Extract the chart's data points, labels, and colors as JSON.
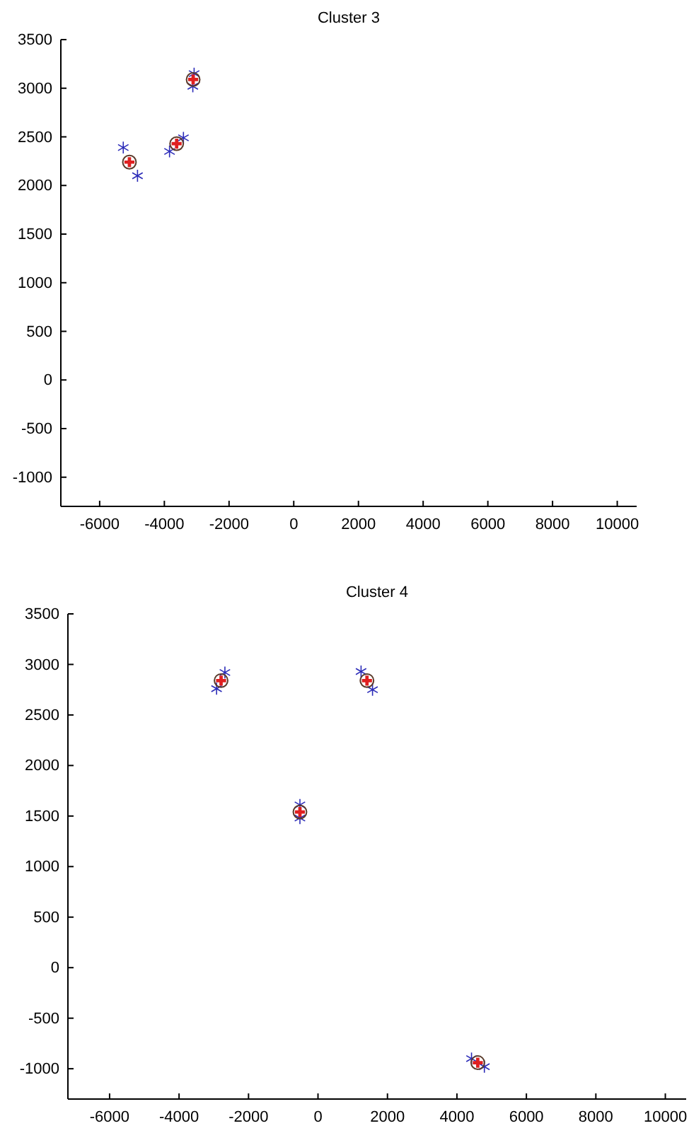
{
  "chart_data": [
    {
      "type": "scatter",
      "title": "Cluster 3",
      "xlim": [
        -7200,
        10600
      ],
      "ylim": [
        -1300,
        3500
      ],
      "xticks": [
        -6000,
        -4000,
        -2000,
        0,
        2000,
        4000,
        6000,
        8000,
        10000
      ],
      "yticks": [
        -1000,
        -500,
        0,
        500,
        1000,
        1500,
        2000,
        2500,
        3000,
        3500
      ],
      "grid": false,
      "series": [
        {
          "color": "#2b2bb8",
          "marker": "cross",
          "x": [
            -5270,
            -4830,
            -3840,
            -3410,
            -3080,
            -3120
          ],
          "values": [
            2390,
            2100,
            2350,
            2490,
            3150,
            3020
          ]
        },
        {
          "color": "#5a3a2a",
          "marker": "circle",
          "x": [
            -5080,
            -3620,
            -3110
          ],
          "values": [
            2240,
            2430,
            3090
          ]
        },
        {
          "color": "#e02020",
          "marker": "cross",
          "x": [
            -5080,
            -3620,
            -3110
          ],
          "values": [
            2240,
            2430,
            3090
          ]
        }
      ]
    },
    {
      "type": "scatter",
      "title": "Cluster 4",
      "xlim": [
        -7200,
        10600
      ],
      "ylim": [
        -1300,
        3500
      ],
      "xticks": [
        -6000,
        -4000,
        -2000,
        0,
        2000,
        4000,
        6000,
        8000,
        10000
      ],
      "yticks": [
        -1000,
        -500,
        0,
        500,
        1000,
        1500,
        2000,
        2500,
        3000,
        3500
      ],
      "grid": false,
      "series": [
        {
          "color": "#2b2bb8",
          "marker": "cross",
          "x": [
            -2680,
            -2920,
            1240,
            1570,
            -520,
            -520,
            4420,
            4790
          ],
          "values": [
            2920,
            2760,
            2930,
            2750,
            1610,
            1480,
            -900,
            -980
          ]
        },
        {
          "color": "#5a3a2a",
          "marker": "circle",
          "x": [
            -2790,
            1410,
            -520,
            4600
          ],
          "values": [
            2840,
            2840,
            1540,
            -940
          ]
        },
        {
          "color": "#e02020",
          "marker": "cross",
          "x": [
            -2790,
            1410,
            -520,
            4600
          ],
          "values": [
            2840,
            2840,
            1540,
            -940
          ]
        }
      ]
    }
  ]
}
